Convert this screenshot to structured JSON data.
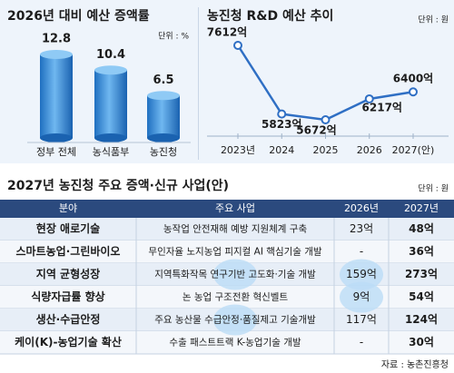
{
  "chart_data": [
    {
      "type": "bar",
      "title": "2026년 대비 예산 증액률",
      "unit": "단위 : %",
      "categories": [
        "정부 전체",
        "농식품부",
        "농진청"
      ],
      "values": [
        12.8,
        10.4,
        6.5
      ],
      "color": "#2f86d6"
    },
    {
      "type": "line",
      "title": "농진청 R&D 예산 추이",
      "unit": "단위 : 원",
      "categories": [
        "2023년",
        "2024",
        "2025",
        "2026",
        "2027(안)"
      ],
      "values": [
        7612,
        5823,
        5672,
        6217,
        6400
      ],
      "value_labels": [
        "7612억",
        "5823억",
        "5672억",
        "6217억",
        "6400억"
      ],
      "color": "#2f6fc4"
    }
  ],
  "table": {
    "title": "2027년 농진청 주요 증액·신규 사업(안)",
    "unit": "단위 : 원",
    "header": [
      "분야",
      "주요 사업",
      "2026년",
      "2027년"
    ],
    "rows": [
      [
        "현장 애로기술",
        "농작업 안전재해 예방 지원체계 구축",
        "23억",
        "48억"
      ],
      [
        "스마트농업·그린바이오",
        "무인자율 노지농업 피지컬 AI 핵심기술 개발",
        "-",
        "36억"
      ],
      [
        "지역 균형성장",
        "지역특화작목 연구기반 고도화·기술 개발",
        "159억",
        "273억"
      ],
      [
        "식량자급률 향상",
        "논 농업 구조전환 혁신벨트",
        "9억",
        "54억"
      ],
      [
        "생산·수급안정",
        "주요 농산물 수급안정·품질제고 기술개발",
        "117억",
        "124억"
      ],
      [
        "케이(K)-농업기술 확산",
        "수출 패스트트랙 K-농업기술 개발",
        "-",
        "30억"
      ]
    ]
  },
  "source": "자료 : 농촌진흥청"
}
